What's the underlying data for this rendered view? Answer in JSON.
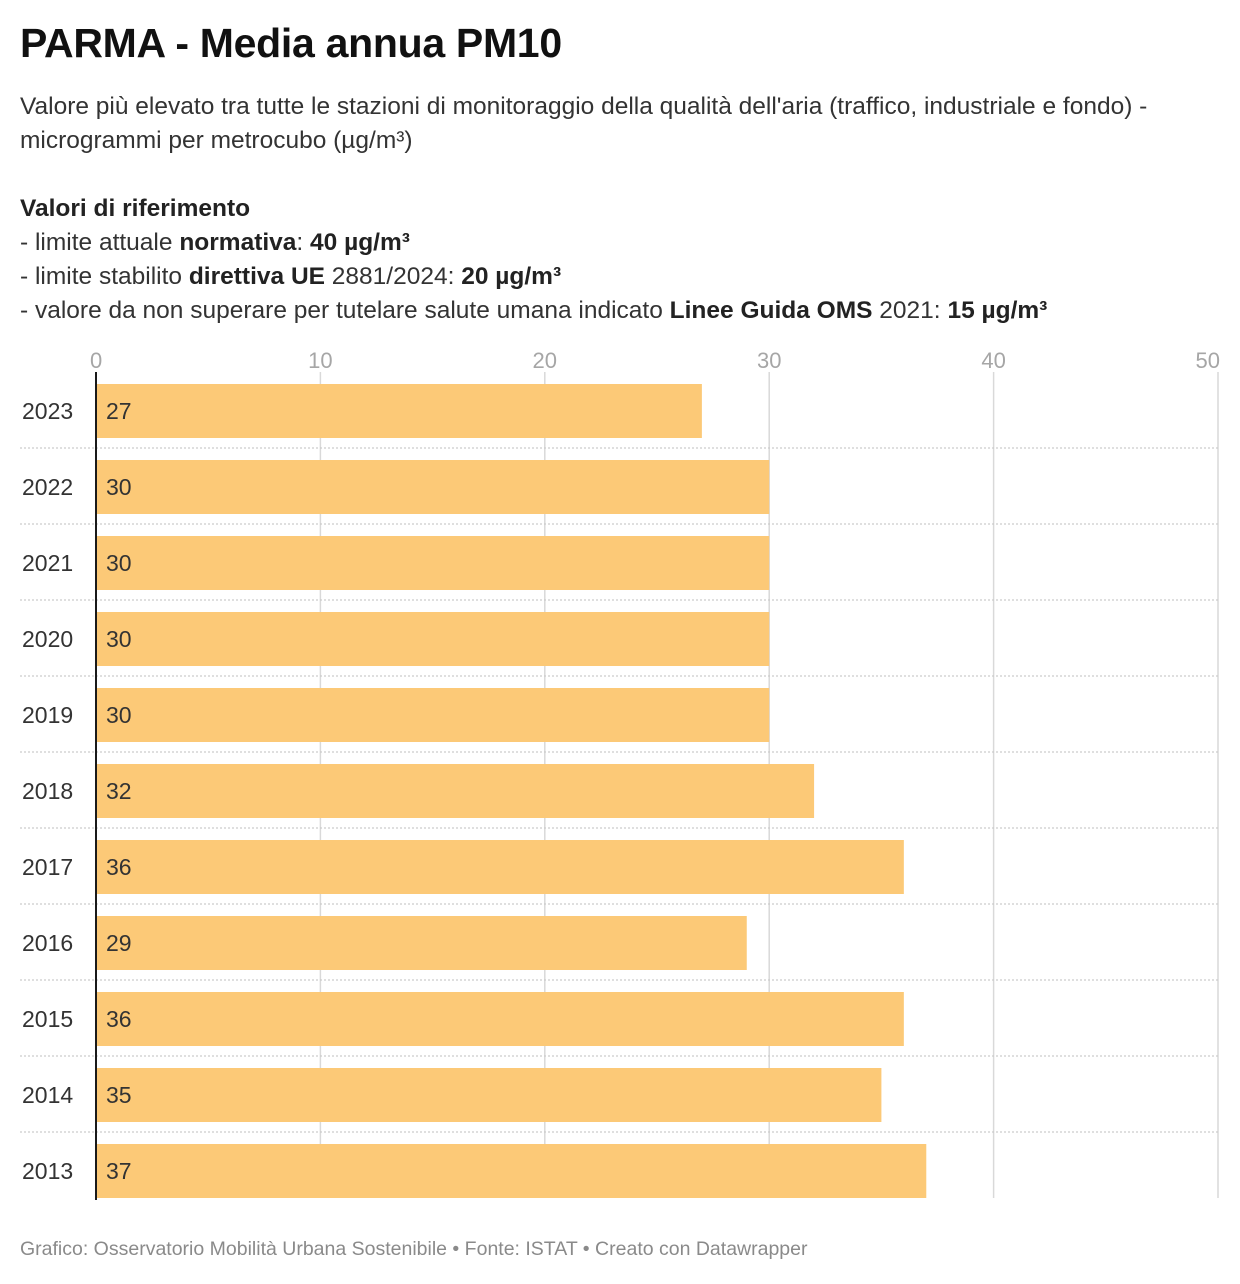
{
  "title": "PARMA - Media annua PM10",
  "subtitle": "Valore più elevato tra tutte le stazioni di monitoraggio della qualità dell'aria (traffico, industriale e fondo) - microgrammi per metrocubo (µg/m³)",
  "references": {
    "heading": "Valori di riferimento",
    "line1": {
      "prefix": "- limite attuale ",
      "bold_label": "normativa",
      "sep": ": ",
      "value": "40 µg/m³"
    },
    "line2": {
      "prefix": "- limite stabilito ",
      "bold_label": "direttiva UE",
      "mid": " 2881/2024: ",
      "value": "20 µg/m³"
    },
    "line3": {
      "prefix": "- valore da non superare per tutelare salute umana indicato ",
      "bold_label": "Linee Guida OMS",
      "mid": " 2021: ",
      "value": "15 µg/m³"
    }
  },
  "footer": "Grafico: Osservatorio Mobilità Urbana Sostenibile • Fonte: ISTAT • Creato con Datawrapper",
  "colors": {
    "bar": "#fcc977",
    "bar_label": "#333333",
    "grid": "#d9d9d9",
    "row_separator": "#cccccc",
    "axis": "#1a1a1a",
    "tick_text": "#a6a6a6"
  },
  "chart_data": {
    "type": "bar",
    "orientation": "horizontal",
    "categories": [
      "2023",
      "2022",
      "2021",
      "2020",
      "2019",
      "2018",
      "2017",
      "2016",
      "2015",
      "2014",
      "2013"
    ],
    "values": [
      27,
      30,
      30,
      30,
      30,
      32,
      36,
      29,
      36,
      35,
      37
    ],
    "xlim": [
      0,
      50
    ],
    "xticks": [
      0,
      10,
      20,
      30,
      40,
      50
    ],
    "xaxis_position": "top",
    "grid": true,
    "value_labels": "inside-left"
  }
}
